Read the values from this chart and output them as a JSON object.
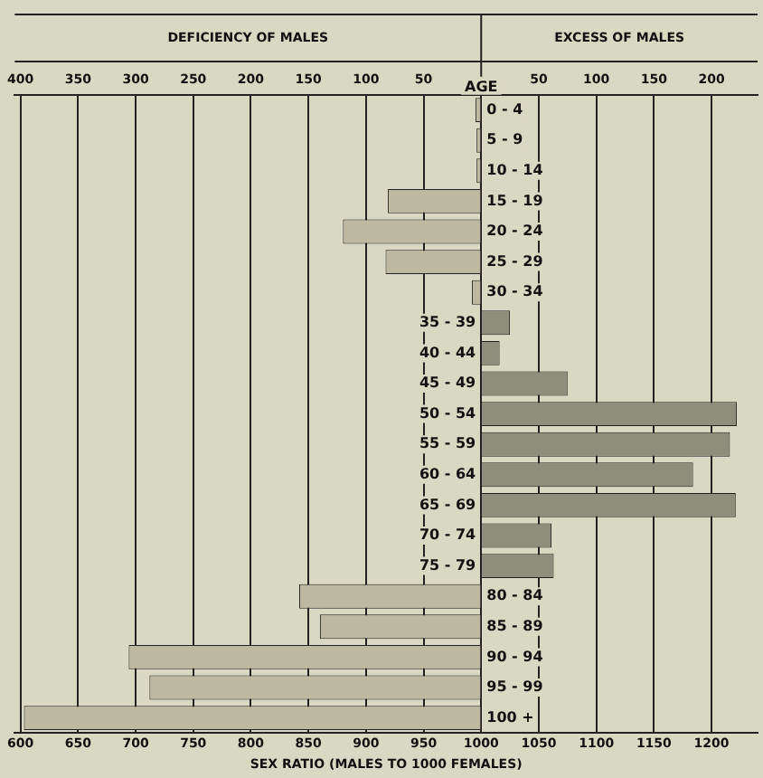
{
  "chart_data": {
    "type": "bar",
    "orientation": "horizontal",
    "annotations": [
      "DEFICIENCY OF MALES",
      "EXCESS OF MALES"
    ],
    "xlabel": "SEX RATIO (MALES TO 1000 FEMALES)",
    "ylabel": "AGE",
    "categories": [
      "0 - 4",
      "5 - 9",
      "10 - 14",
      "15 - 19",
      "20 - 24",
      "25 - 29",
      "30 - 34",
      "35 - 39",
      "40 - 44",
      "45 - 49",
      "50 - 54",
      "55 - 59",
      "60 - 64",
      "65 - 69",
      "70 - 74",
      "75 - 79",
      "80 - 84",
      "85 - 89",
      "90 - 94",
      "95 - 99",
      "100 +"
    ],
    "base": [
      1000,
      1000,
      1000,
      1000,
      1000,
      1000,
      1000,
      1000,
      1000,
      1000,
      1000,
      1000,
      1000,
      1000,
      1000,
      1000,
      1000,
      1000,
      1000,
      1000,
      1000
    ],
    "values": [
      -5,
      -4,
      -4,
      -81,
      -120,
      -83,
      -8,
      25,
      16,
      75,
      222,
      216,
      184,
      221,
      61,
      63,
      -158,
      -140,
      -306,
      -288,
      -397
    ],
    "colors": [
      "#bdb9a0",
      "#bdb9a0",
      "#bdb9a0",
      "#bdb9a0",
      "#bdb9a0",
      "#bdb9a0",
      "#bdb9a0",
      "#8f8d7c",
      "#8f8d7c",
      "#8f8d7c",
      "#8f8d7c",
      "#8f8d7c",
      "#8f8d7c",
      "#8f8d7c",
      "#8f8d7c",
      "#8f8d7c",
      "#bdb9a0",
      "#bdb9a0",
      "#bdb9a0",
      "#bdb9a0",
      "#bdb9a0"
    ],
    "xlim": [
      595,
      1240
    ],
    "xticks": [
      600,
      650,
      700,
      750,
      800,
      850,
      900,
      950,
      1000,
      1050,
      1100,
      1150,
      1200
    ],
    "x2lim": [
      -405,
      240
    ],
    "x2ticks": [
      {
        "value": -400,
        "label": "400"
      },
      {
        "value": -350,
        "label": "350"
      },
      {
        "value": -300,
        "label": "300"
      },
      {
        "value": -250,
        "label": "250"
      },
      {
        "value": -200,
        "label": "200"
      },
      {
        "value": -150,
        "label": "150"
      },
      {
        "value": -100,
        "label": "100"
      },
      {
        "value": -50,
        "label": "50"
      },
      {
        "value": 50,
        "label": "50"
      },
      {
        "value": 100,
        "label": "100"
      },
      {
        "value": 150,
        "label": "150"
      },
      {
        "value": 200,
        "label": "200"
      }
    ],
    "grid": "x",
    "legend": false
  }
}
